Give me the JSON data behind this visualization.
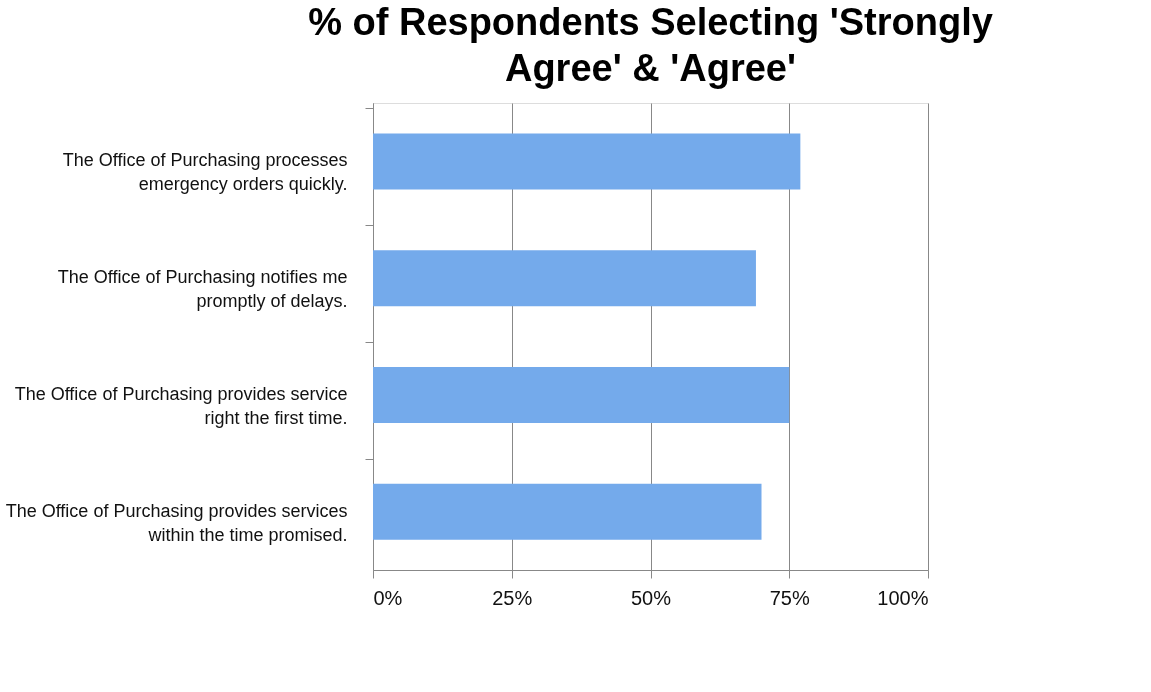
{
  "chart_data": {
    "type": "bar",
    "orientation": "horizontal",
    "title": "% of Respondents Selecting 'Strongly Agree' & 'Agree'",
    "categories": [
      "The Office of Purchasing processes emergency orders quickly.",
      "The Office of Purchasing notifies me promptly of delays.",
      "The Office of Purchasing provides service right the first time.",
      "The Office of Purchasing provides services within the time promised."
    ],
    "values": [
      77,
      69,
      75,
      70
    ],
    "color": "#74aaeb",
    "xlim": [
      0,
      100
    ],
    "xticks": [
      {
        "value": 0,
        "label": "0%"
      },
      {
        "value": 25,
        "label": "25%"
      },
      {
        "value": 50,
        "label": "50%"
      },
      {
        "value": 75,
        "label": "75%"
      },
      {
        "value": 100,
        "label": "100%"
      }
    ],
    "grid": "x"
  }
}
